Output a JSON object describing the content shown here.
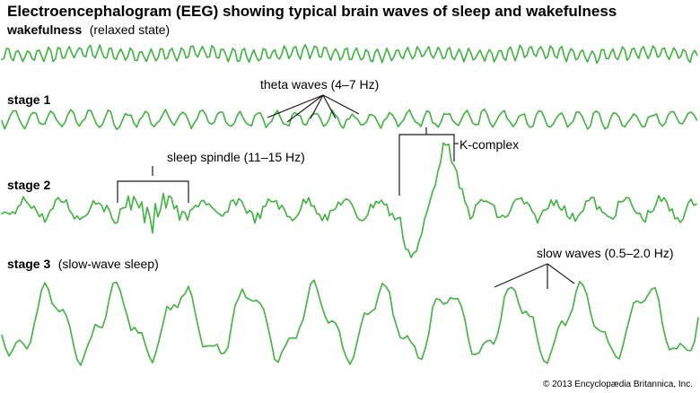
{
  "title": "Electroencephalogram (EEG) showing typical brain waves of sleep and wakefulness",
  "accent_color": "#3db33d",
  "traces": [
    {
      "id": "wakefulness",
      "name": "wakefulness",
      "note": "(relaxed state)"
    },
    {
      "id": "stage1",
      "name": "stage 1",
      "note": ""
    },
    {
      "id": "stage2",
      "name": "stage 2",
      "note": ""
    },
    {
      "id": "stage3",
      "name": "stage 3",
      "note": "(slow-wave sleep)"
    }
  ],
  "annotations": {
    "theta": "theta waves (4–7 Hz)",
    "spindle": "sleep spindle (11–15 Hz)",
    "kcomplex": "K-complex",
    "slow": "slow waves (0.5–2.0 Hz)"
  },
  "credit": "© 2013 Encyclopædia Britannica, Inc."
}
